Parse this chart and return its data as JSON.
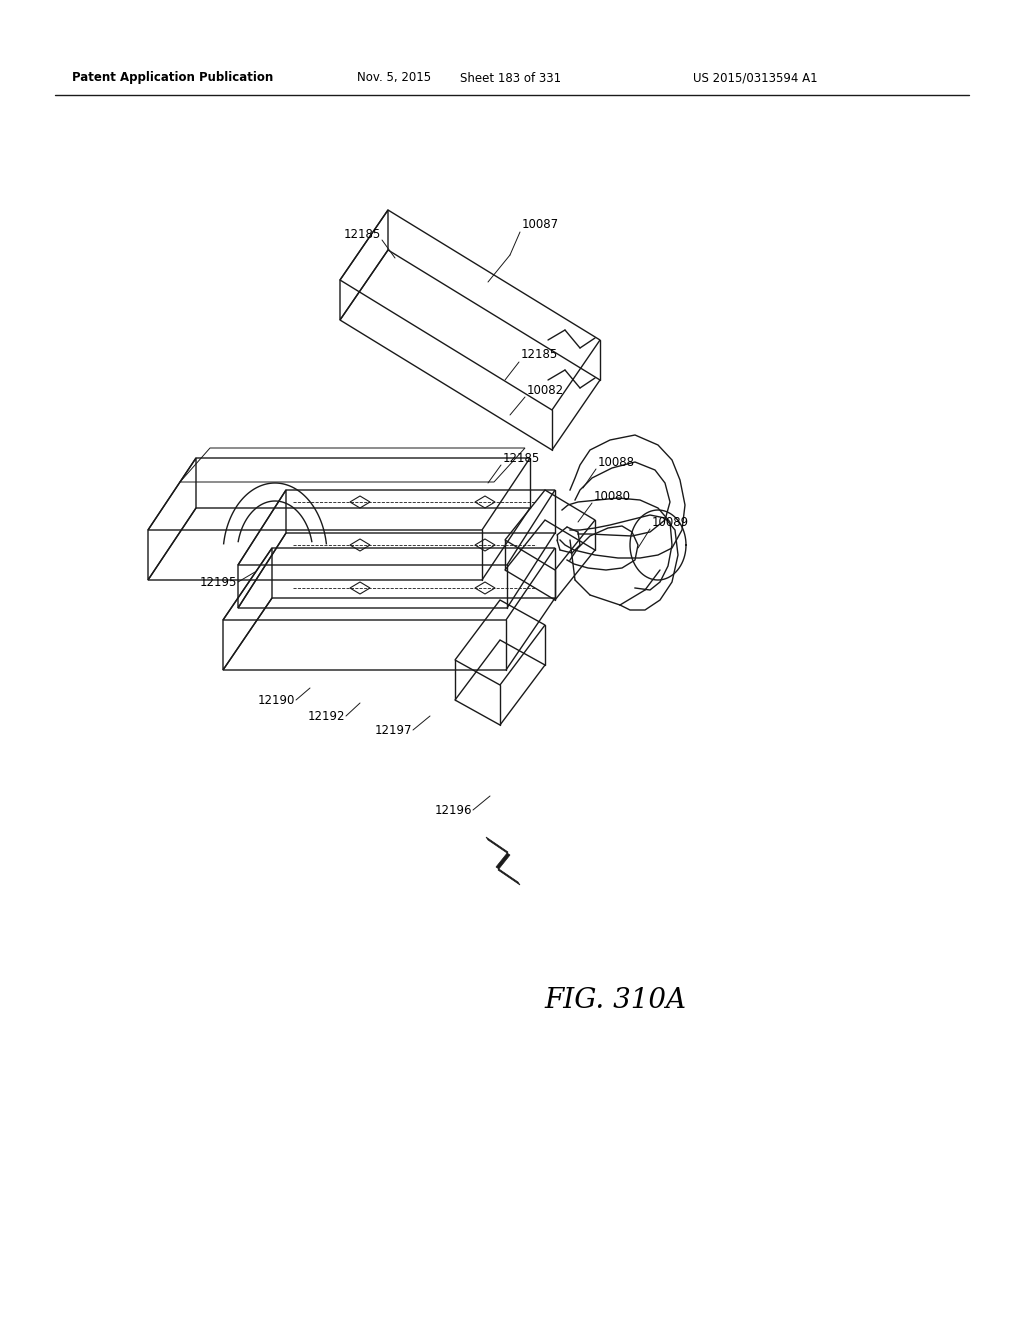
{
  "background_color": "#ffffff",
  "header_text": "Patent Application Publication",
  "header_date": "Nov. 5, 2015",
  "header_sheet": "Sheet 183 of 331",
  "header_patent": "US 2015/0313594 A1",
  "figure_label": "FIG. 310A",
  "line_color": "#1a1a1a",
  "label_fontsize": 8.5,
  "header_fontsize": 8.5,
  "figure_label_fontsize": 20
}
